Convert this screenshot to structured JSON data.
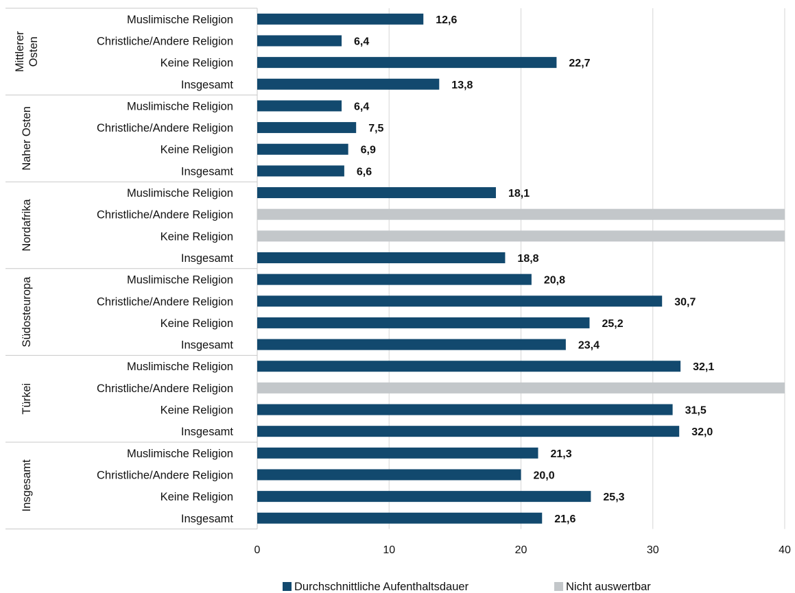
{
  "chart_data": {
    "type": "bar",
    "orientation": "horizontal",
    "xlim": [
      0,
      40
    ],
    "x_ticks": [
      "0",
      "10",
      "20",
      "30",
      "40"
    ],
    "grid": true,
    "legend_position": "bottom",
    "legend": [
      {
        "label": "Durchschnittliche Aufenthaltsdauer",
        "color": "#12496e"
      },
      {
        "label": "Nicht auswertbar",
        "color": "#c3c7ca"
      }
    ],
    "groups": [
      {
        "name": "Mittlerer Osten",
        "label_lines": [
          "Mittlerer",
          "Osten"
        ],
        "rows": [
          {
            "label": "Muslimische Religion",
            "value": 12.6,
            "value_label": "12,6"
          },
          {
            "label": "Christliche/Andere Religion",
            "value": 6.4,
            "value_label": "6,4"
          },
          {
            "label": "Keine Religion",
            "value": 22.7,
            "value_label": "22,7"
          },
          {
            "label": "Insgesamt",
            "value": 13.8,
            "value_label": "13,8"
          }
        ]
      },
      {
        "name": "Naher Osten",
        "label_lines": [
          "Naher Osten"
        ],
        "rows": [
          {
            "label": "Muslimische Religion",
            "value": 6.4,
            "value_label": "6,4"
          },
          {
            "label": "Christliche/Andere Religion",
            "value": 7.5,
            "value_label": "7,5"
          },
          {
            "label": "Keine Religion",
            "value": 6.9,
            "value_label": "6,9"
          },
          {
            "label": "Insgesamt",
            "value": 6.6,
            "value_label": "6,6"
          }
        ]
      },
      {
        "name": "Nordafrika",
        "label_lines": [
          "Nordafrika"
        ],
        "rows": [
          {
            "label": "Muslimische Religion",
            "value": 18.1,
            "value_label": "18,1"
          },
          {
            "label": "Christliche/Andere Religion",
            "value": null,
            "not_evaluable": true
          },
          {
            "label": "Keine Religion",
            "value": null,
            "not_evaluable": true
          },
          {
            "label": "Insgesamt",
            "value": 18.8,
            "value_label": "18,8"
          }
        ]
      },
      {
        "name": "Südosteuropa",
        "label_lines": [
          "Südosteuropa"
        ],
        "rows": [
          {
            "label": "Muslimische Religion",
            "value": 20.8,
            "value_label": "20,8"
          },
          {
            "label": "Christliche/Andere Religion",
            "value": 30.7,
            "value_label": "30,7"
          },
          {
            "label": "Keine Religion",
            "value": 25.2,
            "value_label": "25,2"
          },
          {
            "label": "Insgesamt",
            "value": 23.4,
            "value_label": "23,4"
          }
        ]
      },
      {
        "name": "Türkei",
        "label_lines": [
          "Türkei"
        ],
        "rows": [
          {
            "label": "Muslimische Religion",
            "value": 32.1,
            "value_label": "32,1"
          },
          {
            "label": "Christliche/Andere Religion",
            "value": null,
            "not_evaluable": true
          },
          {
            "label": "Keine Religion",
            "value": 31.5,
            "value_label": "31,5"
          },
          {
            "label": "Insgesamt",
            "value": 32.0,
            "value_label": "32,0"
          }
        ]
      },
      {
        "name": "Insgesamt",
        "label_lines": [
          "Insgesamt"
        ],
        "rows": [
          {
            "label": "Muslimische Religion",
            "value": 21.3,
            "value_label": "21,3"
          },
          {
            "label": "Christliche/Andere Religion",
            "value": 20.0,
            "value_label": "20,0"
          },
          {
            "label": "Keine Religion",
            "value": 25.3,
            "value_label": "25,3"
          },
          {
            "label": "Insgesamt",
            "value": 21.6,
            "value_label": "21,6"
          }
        ]
      }
    ]
  }
}
